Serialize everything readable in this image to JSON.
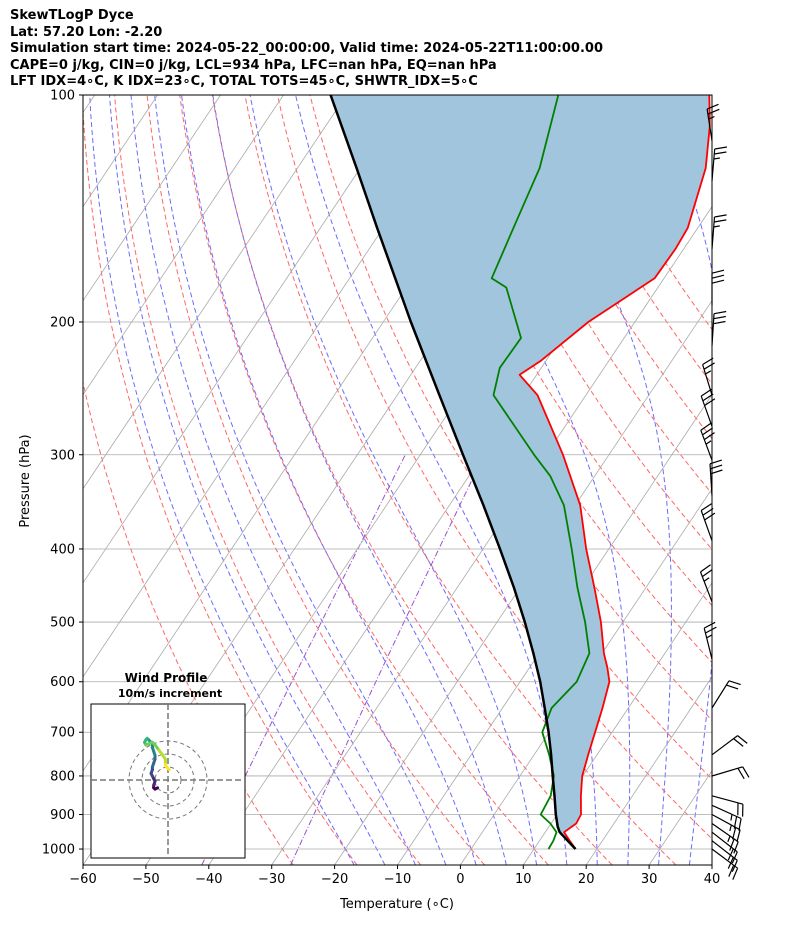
{
  "header": {
    "lines": [
      "SkewTLogP Dyce",
      "Lat: 57.20   Lon: -2.20",
      "Simulation start time: 2024-05-22_00:00:00, Valid time: 2024-05-22T11:00:00.00",
      "CAPE=0 j/kg, CIN=0 j/kg, LCL=934 hPa, LFC=nan hPa, EQ=nan hPa",
      "LFT IDX=4∘C, K IDX=23∘C, TOTAL TOTS=45∘C, SHWTR_IDX=5∘C"
    ]
  },
  "chart_data": {
    "type": "skewt",
    "xlabel": "Temperature (∘C)",
    "ylabel": "Pressure (hPa)",
    "xlim": [
      -60,
      40
    ],
    "ylim": [
      1050,
      100
    ],
    "x_ticks": [
      -60,
      -50,
      -40,
      -30,
      -20,
      -10,
      0,
      10,
      20,
      30,
      40
    ],
    "y_ticks": [
      1000,
      900,
      800,
      700,
      600,
      500,
      400,
      300,
      200,
      100
    ],
    "colors": {
      "temperature": "#ff0000",
      "dewpoint": "#008000",
      "parcel": "#000000",
      "shading": "#a2c5de",
      "dry_adiabats": "#ff6666",
      "moist_adiabats": "#6b6bff",
      "mixing_ratio": "#9b4fcf",
      "isotherms": "#aaaaaa"
    },
    "temperature": [
      {
        "p": 1000,
        "t": 16.6
      },
      {
        "p": 975,
        "t": 14.8
      },
      {
        "p": 950,
        "t": 13.0
      },
      {
        "p": 925,
        "t": 14.0
      },
      {
        "p": 900,
        "t": 13.8
      },
      {
        "p": 850,
        "t": 11.8
      },
      {
        "p": 800,
        "t": 9.9
      },
      {
        "p": 750,
        "t": 8.6
      },
      {
        "p": 700,
        "t": 7.3
      },
      {
        "p": 650,
        "t": 5.9
      },
      {
        "p": 600,
        "t": 4.2
      },
      {
        "p": 575,
        "t": 2.4
      },
      {
        "p": 550,
        "t": 0.3
      },
      {
        "p": 500,
        "t": -3.5
      },
      {
        "p": 450,
        "t": -8.2
      },
      {
        "p": 400,
        "t": -13.6
      },
      {
        "p": 350,
        "t": -19.2
      },
      {
        "p": 300,
        "t": -27.3
      },
      {
        "p": 250,
        "t": -37.7
      },
      {
        "p": 235,
        "t": -42.7
      },
      {
        "p": 225,
        "t": -40.8
      },
      {
        "p": 200,
        "t": -37.4
      },
      {
        "p": 175,
        "t": -31.5
      },
      {
        "p": 160,
        "t": -31.3
      },
      {
        "p": 150,
        "t": -31.6
      },
      {
        "p": 125,
        "t": -35.1
      },
      {
        "p": 110,
        "t": -38.9
      },
      {
        "p": 100,
        "t": -42.3
      }
    ],
    "dewpoint": [
      {
        "p": 1000,
        "t": 12.3
      },
      {
        "p": 975,
        "t": 12.2
      },
      {
        "p": 950,
        "t": 11.8
      },
      {
        "p": 925,
        "t": 9.9
      },
      {
        "p": 900,
        "t": 7.4
      },
      {
        "p": 850,
        "t": 7.0
      },
      {
        "p": 800,
        "t": 5.4
      },
      {
        "p": 750,
        "t": 2.4
      },
      {
        "p": 700,
        "t": -1.1
      },
      {
        "p": 650,
        "t": -2.2
      },
      {
        "p": 600,
        "t": -1.0
      },
      {
        "p": 550,
        "t": -2.0
      },
      {
        "p": 500,
        "t": -6.0
      },
      {
        "p": 450,
        "t": -10.9
      },
      {
        "p": 400,
        "t": -15.9
      },
      {
        "p": 350,
        "t": -21.8
      },
      {
        "p": 320,
        "t": -27.1
      },
      {
        "p": 300,
        "t": -31.9
      },
      {
        "p": 250,
        "t": -44.7
      },
      {
        "p": 230,
        "t": -46.6
      },
      {
        "p": 210,
        "t": -46.4
      },
      {
        "p": 180,
        "t": -54.1
      },
      {
        "p": 175,
        "t": -57.4
      },
      {
        "p": 150,
        "t": -59.3
      },
      {
        "p": 125,
        "t": -61.5
      },
      {
        "p": 100,
        "t": -66.3
      }
    ],
    "parcel": [
      {
        "p": 1000,
        "t": 16.6
      },
      {
        "p": 950,
        "t": 12.3
      },
      {
        "p": 934,
        "t": 11.4
      },
      {
        "p": 900,
        "t": 9.8
      },
      {
        "p": 850,
        "t": 7.6
      },
      {
        "p": 800,
        "t": 5.2
      },
      {
        "p": 750,
        "t": 2.7
      },
      {
        "p": 700,
        "t": -0.1
      },
      {
        "p": 650,
        "t": -3.3
      },
      {
        "p": 600,
        "t": -6.8
      },
      {
        "p": 550,
        "t": -10.9
      },
      {
        "p": 500,
        "t": -15.6
      },
      {
        "p": 450,
        "t": -21.0
      },
      {
        "p": 400,
        "t": -27.3
      },
      {
        "p": 350,
        "t": -34.6
      },
      {
        "p": 300,
        "t": -43.2
      },
      {
        "p": 250,
        "t": -53.3
      },
      {
        "p": 200,
        "t": -65.6
      },
      {
        "p": 150,
        "t": -81.0
      },
      {
        "p": 125,
        "t": -90.6
      },
      {
        "p": 100,
        "t": -102.5
      }
    ],
    "dry_adiabats_theta_c": [
      -30,
      -20,
      -10,
      0,
      10,
      20,
      30,
      40,
      50,
      60,
      70,
      80,
      90,
      100,
      110,
      120,
      130
    ],
    "moist_adiabats_c": [
      -20,
      -15,
      -10,
      -5,
      0,
      5,
      10,
      15,
      20,
      25,
      30,
      35
    ],
    "mixing_ratio_gkg": [
      0.1,
      0.4
    ],
    "wind_barbs": [
      {
        "p": 1000,
        "u": -8,
        "v": 6
      },
      {
        "p": 975,
        "u": -9,
        "v": 7
      },
      {
        "p": 950,
        "u": -9,
        "v": 7
      },
      {
        "p": 925,
        "u": -10,
        "v": 7
      },
      {
        "p": 900,
        "u": -11,
        "v": 6
      },
      {
        "p": 875,
        "u": -11,
        "v": 5
      },
      {
        "p": 850,
        "u": -11,
        "v": 3
      },
      {
        "p": 800,
        "u": -10,
        "v": -3
      },
      {
        "p": 750,
        "u": -8,
        "v": -6
      },
      {
        "p": 650,
        "u": -5,
        "v": -8
      },
      {
        "p": 560,
        "u": 3,
        "v": -12
      },
      {
        "p": 470,
        "u": 5,
        "v": -13
      },
      {
        "p": 390,
        "u": 5,
        "v": -14
      },
      {
        "p": 340,
        "u": 1,
        "v": -16
      },
      {
        "p": 305,
        "u": 6,
        "v": -16
      },
      {
        "p": 275,
        "u": 5,
        "v": -14
      },
      {
        "p": 250,
        "u": 4,
        "v": -13
      },
      {
        "p": 215,
        "u": -1,
        "v": -16
      },
      {
        "p": 190,
        "u": 0,
        "v": -16
      },
      {
        "p": 160,
        "u": -1,
        "v": -13
      },
      {
        "p": 130,
        "u": -1,
        "v": -12
      },
      {
        "p": 115,
        "u": 2,
        "v": -13
      }
    ],
    "hodograph": {
      "title": "Wind Profile",
      "subtitle": "10m/s increment",
      "rings_ms": [
        10,
        20,
        30
      ],
      "points": [
        {
          "u": -8,
          "v": -6
        },
        {
          "u": -10,
          "v": -7
        },
        {
          "u": -11,
          "v": -6
        },
        {
          "u": -11,
          "v": -4
        },
        {
          "u": -10,
          "v": -1
        },
        {
          "u": -11,
          "v": 1
        },
        {
          "u": -12,
          "v": 3
        },
        {
          "u": -13,
          "v": 5
        },
        {
          "u": -12,
          "v": 8
        },
        {
          "u": -12,
          "v": 10
        },
        {
          "u": -11,
          "v": 13
        },
        {
          "u": -10,
          "v": 16
        },
        {
          "u": -10,
          "v": 19
        },
        {
          "u": -11,
          "v": 22
        },
        {
          "u": -12,
          "v": 25
        },
        {
          "u": -12,
          "v": 28
        },
        {
          "u": -14,
          "v": 30
        },
        {
          "u": -15,
          "v": 31
        },
        {
          "u": -16,
          "v": 32
        },
        {
          "u": -17,
          "v": 31
        },
        {
          "u": -18,
          "v": 29
        },
        {
          "u": -17,
          "v": 27
        },
        {
          "u": -12,
          "v": 29
        },
        {
          "u": -10,
          "v": 27
        },
        {
          "u": -7,
          "v": 23
        },
        {
          "u": -4,
          "v": 19
        },
        {
          "u": -2,
          "v": 16
        },
        {
          "u": -2,
          "v": 12
        },
        {
          "u": -1,
          "v": 10
        },
        {
          "u": 1,
          "v": 8
        }
      ]
    }
  }
}
